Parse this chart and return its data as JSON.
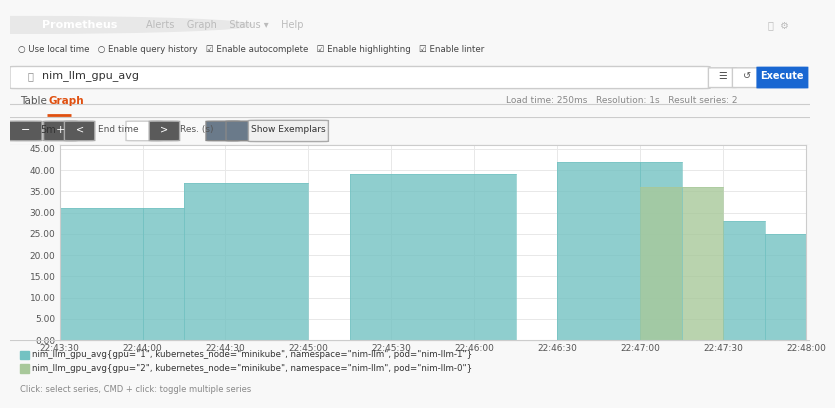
{
  "title": "Prometheus",
  "query": "nim_llm_gpu_avg",
  "x_label_times": [
    "22:43:30",
    "22:44:00",
    "22:44:30",
    "22:45:00",
    "22:45:30",
    "22:46:00",
    "22:46:30",
    "22:47:00",
    "22:47:30",
    "22:48:00"
  ],
  "y_ticks": [
    0.0,
    5.0,
    10.0,
    15.0,
    20.0,
    25.0,
    30.0,
    35.0,
    40.0,
    45.0
  ],
  "ylim": [
    0,
    46
  ],
  "series1_color": "#73C2C2",
  "series2_color": "#A8C89A",
  "series1_alpha": 0.8,
  "series2_alpha": 0.8,
  "legend1": "nim_llm_gpu_avg{gpu=\"1\", kubernetes_node=\"minikube\", namespace=\"nim-llm\", pod=\"nim-llm-1\"}",
  "legend2": "nim_llm_gpu_avg{gpu=\"2\", kubernetes_node=\"minikube\", namespace=\"nim-llm\", pod=\"nim-llm-0\"}",
  "footer_text": "Click: select series, CMD + click: toggle multiple series",
  "nav_bg": "#2D3035",
  "ui_bg": "#F8F8F8",
  "chart_bg": "#FFFFFF",
  "border_color": "#CCCCCC",
  "grid_color": "#E8E8E8",
  "x_range": [
    0.0,
    9.0
  ],
  "series1_segments": [
    [
      0.0,
      1.0,
      31.0
    ],
    [
      1.0,
      1.5,
      31.0
    ],
    [
      1.5,
      3.0,
      37.0
    ],
    [
      3.5,
      5.5,
      39.0
    ],
    [
      6.0,
      7.0,
      42.0
    ],
    [
      7.0,
      7.5,
      42.0
    ],
    [
      8.0,
      8.5,
      28.0
    ],
    [
      8.5,
      9.0,
      25.0
    ]
  ],
  "series2_segments": [
    [
      7.0,
      8.0,
      36.0
    ]
  ]
}
